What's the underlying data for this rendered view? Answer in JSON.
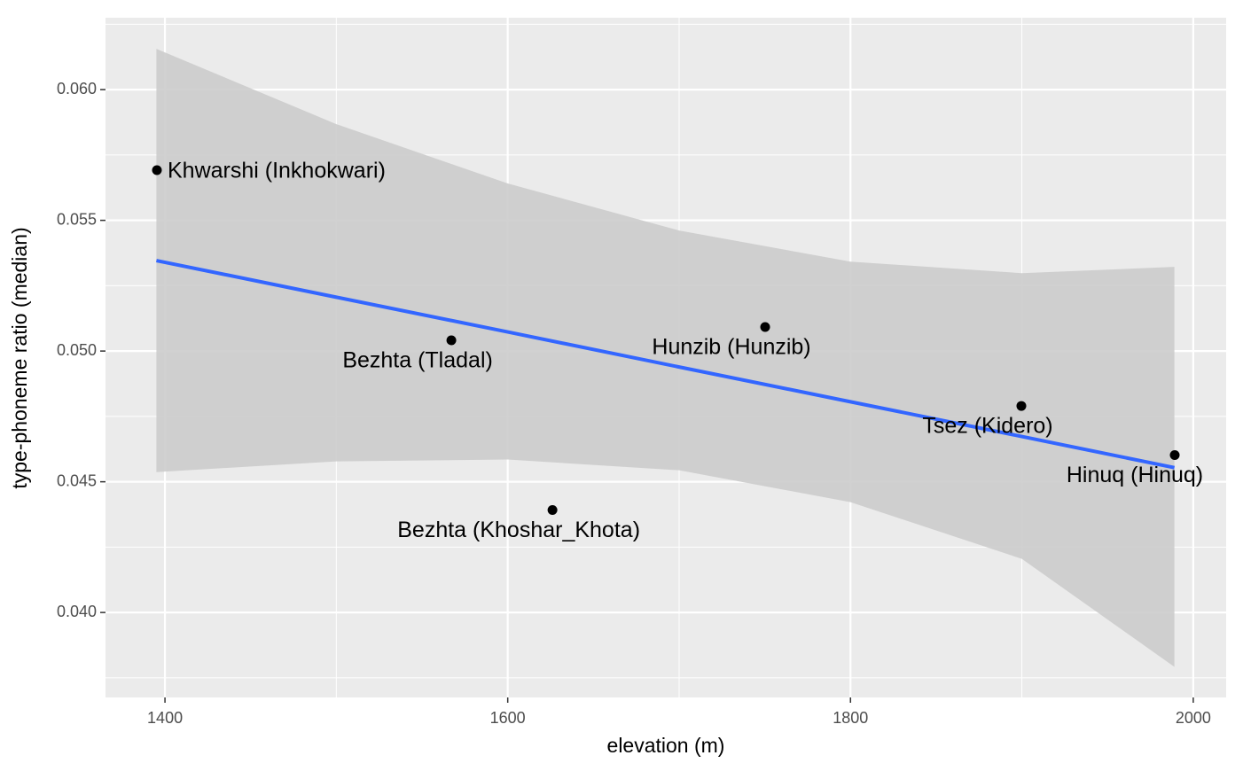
{
  "chart_data": {
    "type": "scatter",
    "x_label": "elevation (m)",
    "y_label": "type-phoneme ratio (median)",
    "x": [
      1395.3,
      1567.1,
      1626.1,
      1750.2,
      1899.7,
      1989.2
    ],
    "values": [
      0.05692,
      0.05041,
      0.04392,
      0.05092,
      0.0479,
      0.04602
    ],
    "labels": [
      "Khwarshi (Inkhokwari)",
      "Bezhta (Tladal)",
      "Bezhta (Khoshar_Khota)",
      "Hunzib (Hunzib)",
      "Tsez (Kidero)",
      "Hinuq (Hinuq)"
    ],
    "color": "#000000",
    "trend": {
      "color": "#3366ff",
      "band_color": "#cccccc",
      "x": [
        1395,
        1500,
        1600,
        1700,
        1800,
        1900,
        1989
      ],
      "fit": [
        0.05346,
        0.05206,
        0.05073,
        0.04939,
        0.04806,
        0.04673,
        0.04554
      ],
      "lower": [
        0.04537,
        0.04578,
        0.04585,
        0.04544,
        0.04422,
        0.04205,
        0.03792
      ],
      "upper": [
        0.06156,
        0.05868,
        0.05641,
        0.05461,
        0.05342,
        0.05298,
        0.05322
      ]
    },
    "xlim": [
      1365.3,
      2019.2
    ],
    "ylim": [
      0.03675,
      0.06275
    ],
    "xticks": [
      1400,
      1600,
      1800,
      2000
    ],
    "yticks": [
      {
        "value": 0.04,
        "label": "0.040"
      },
      {
        "value": 0.045,
        "label": "0.045"
      },
      {
        "value": 0.05,
        "label": "0.050"
      },
      {
        "value": 0.055,
        "label": "0.055"
      },
      {
        "value": 0.06,
        "label": "0.060"
      }
    ],
    "grid": true
  }
}
